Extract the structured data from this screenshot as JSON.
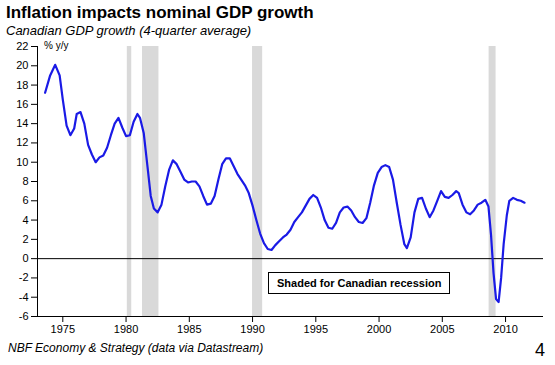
{
  "chart_data": {
    "type": "line",
    "title": "Inflation impacts nominal GDP growth",
    "subtitle": "Canadian GDP growth (4-quarter average)",
    "y_label": "% y/y",
    "recession_label": "Shaded for Canadian recession",
    "source": "NBF Economy & Strategy (data via Datastream)",
    "page_number": "4",
    "color": "#1a1ae6",
    "xlim": [
      1973,
      2013
    ],
    "xticks": [
      1975,
      1980,
      1985,
      1990,
      1995,
      2000,
      2005,
      2010
    ],
    "ylim": [
      -6,
      22
    ],
    "yticks": [
      -6,
      -4,
      -2,
      0,
      2,
      4,
      6,
      8,
      10,
      12,
      14,
      16,
      18,
      20,
      22
    ],
    "recessions": [
      [
        1980.1,
        1980.45
      ],
      [
        1981.3,
        1982.6
      ],
      [
        1990.0,
        1990.8
      ],
      [
        2008.7,
        2009.25
      ]
    ],
    "x": [
      1973.6,
      1974.0,
      1974.4,
      1974.75,
      1975.0,
      1975.3,
      1975.6,
      1975.9,
      1976.1,
      1976.4,
      1976.7,
      1977.0,
      1977.3,
      1977.6,
      1977.9,
      1978.2,
      1978.5,
      1978.8,
      1979.1,
      1979.4,
      1979.7,
      1980.0,
      1980.3,
      1980.6,
      1980.9,
      1981.1,
      1981.4,
      1981.7,
      1981.95,
      1982.2,
      1982.5,
      1982.8,
      1983.1,
      1983.4,
      1983.7,
      1984.0,
      1984.3,
      1984.6,
      1984.9,
      1985.2,
      1985.5,
      1985.8,
      1986.1,
      1986.4,
      1986.7,
      1987.0,
      1987.3,
      1987.6,
      1987.9,
      1988.2,
      1988.5,
      1988.8,
      1989.1,
      1989.4,
      1989.7,
      1990.0,
      1990.3,
      1990.6,
      1990.9,
      1991.2,
      1991.5,
      1991.8,
      1992.1,
      1992.4,
      1992.7,
      1993.0,
      1993.3,
      1993.6,
      1993.9,
      1994.2,
      1994.5,
      1994.8,
      1995.1,
      1995.4,
      1995.7,
      1996.0,
      1996.3,
      1996.6,
      1996.9,
      1997.2,
      1997.5,
      1997.8,
      1998.1,
      1998.4,
      1998.7,
      1999.0,
      1999.3,
      1999.6,
      1999.9,
      2000.2,
      2000.5,
      2000.8,
      2001.1,
      2001.4,
      2001.7,
      2002.0,
      2002.2,
      2002.5,
      2002.8,
      2003.1,
      2003.4,
      2003.7,
      2004.0,
      2004.3,
      2004.6,
      2004.9,
      2005.2,
      2005.5,
      2005.8,
      2006.1,
      2006.3,
      2006.6,
      2006.9,
      2007.2,
      2007.5,
      2007.8,
      2008.1,
      2008.4,
      2008.65,
      2008.85,
      2009.05,
      2009.25,
      2009.45,
      2009.65,
      2009.85,
      2010.1,
      2010.3,
      2010.6,
      2010.9,
      2011.2,
      2011.5
    ],
    "values": [
      17.2,
      19,
      20.1,
      19,
      16.5,
      13.8,
      12.8,
      13.5,
      15,
      15.2,
      14,
      11.8,
      10.8,
      10,
      10.5,
      10.7,
      11.5,
      12.8,
      14,
      14.6,
      13.6,
      12.7,
      12.8,
      14.2,
      15,
      14.6,
      13,
      9.5,
      6.5,
      5.2,
      4.8,
      5.6,
      7.5,
      9.2,
      10.2,
      9.8,
      9,
      8.2,
      7.9,
      8,
      8,
      7.5,
      6.5,
      5.6,
      5.7,
      6.5,
      8.2,
      9.8,
      10.4,
      10.4,
      9.6,
      8.8,
      8.2,
      7.6,
      6.8,
      5.5,
      4,
      2.6,
      1.6,
      1,
      0.9,
      1.4,
      1.8,
      2.2,
      2.5,
      3,
      3.8,
      4.3,
      4.8,
      5.5,
      6.2,
      6.6,
      6.3,
      5.3,
      4,
      3.2,
      3.1,
      3.7,
      4.8,
      5.3,
      5.4,
      5,
      4.3,
      3.8,
      3.7,
      4.2,
      5.8,
      7.6,
      8.9,
      9.5,
      9.7,
      9.5,
      8.2,
      5.8,
      3.5,
      1.5,
      1.1,
      2.2,
      4.8,
      6.2,
      6.3,
      5.2,
      4.3,
      5,
      6,
      7,
      6.4,
      6.3,
      6.6,
      7,
      6.8,
      5.6,
      4.8,
      4.6,
      5,
      5.6,
      5.8,
      6.1,
      5.4,
      2.5,
      -1.5,
      -4.2,
      -4.5,
      -2,
      1.5,
      4.5,
      6,
      6.3,
      6.1,
      6,
      5.8
    ]
  }
}
